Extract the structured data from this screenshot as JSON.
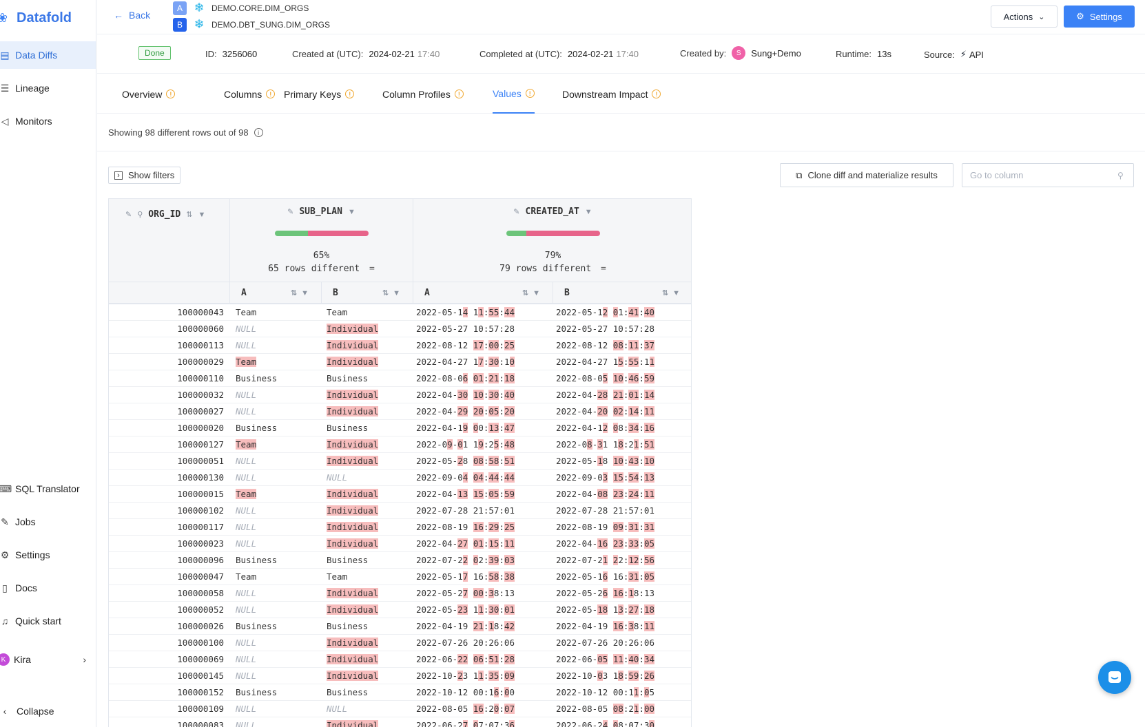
{
  "sidebar": {
    "brand": "Datafold",
    "items": [
      {
        "label": "Data Diffs",
        "icon": "data-diffs-icon",
        "glyph": "▤",
        "active": true
      },
      {
        "label": "Lineage",
        "icon": "lineage-icon",
        "glyph": "☰",
        "active": false
      },
      {
        "label": "Monitors",
        "icon": "monitors-icon",
        "glyph": "◁",
        "active": false
      }
    ],
    "bottom_items": [
      {
        "label": "SQL Translator",
        "icon": "sql-translator-icon",
        "glyph": "⌨"
      },
      {
        "label": "Jobs",
        "icon": "wrench-icon",
        "glyph": "✎"
      },
      {
        "label": "Settings",
        "icon": "sliders-icon",
        "glyph": "⚙"
      },
      {
        "label": "Docs",
        "icon": "book-icon",
        "glyph": "▯"
      },
      {
        "label": "Quick start",
        "icon": "bell-icon",
        "glyph": "♫"
      }
    ],
    "user": {
      "initial": "K",
      "name": "Kira"
    },
    "collapse": "Collapse"
  },
  "topbar": {
    "back": "Back",
    "dataset_a": {
      "badge": "A",
      "name": "DEMO.CORE.DIM_ORGS"
    },
    "dataset_b": {
      "badge": "B",
      "name": "DEMO.DBT_SUNG.DIM_ORGS"
    },
    "actions": "Actions",
    "settings": "Settings"
  },
  "meta": {
    "status": "Done",
    "id_label": "ID:",
    "id": "3256060",
    "created_label": "Created at (UTC):",
    "created_date": "2024-02-21",
    "created_time": "17:40",
    "completed_label": "Completed at (UTC):",
    "completed_date": "2024-02-21",
    "completed_time": "17:40",
    "created_by_label": "Created by:",
    "created_by_initial": "S",
    "created_by": "Sung+Demo",
    "runtime_label": "Runtime:",
    "runtime": "13s",
    "source_label": "Source:",
    "source": "API"
  },
  "tabs": [
    {
      "label": "Overview",
      "active": false
    },
    {
      "label": "Columns",
      "active": false
    },
    {
      "label": "Primary Keys",
      "active": false
    },
    {
      "label": "Column Profiles",
      "active": false
    },
    {
      "label": "Values",
      "active": true
    },
    {
      "label": "Downstream Impact",
      "active": false
    }
  ],
  "summary": "Showing 98 different rows out of 98",
  "toolbar": {
    "show_filters": "Show filters",
    "clone": "Clone diff and materialize results",
    "goto_placeholder": "Go to column"
  },
  "table": {
    "key_column": "ORG_ID",
    "columns": [
      {
        "name": "SUB_PLAN",
        "match_fraction": 0.35,
        "pct": "65%",
        "diff_text": "65 rows different"
      },
      {
        "name": "CREATED_AT",
        "match_fraction": 0.21,
        "pct": "79%",
        "diff_text": "79 rows different"
      }
    ],
    "sub_a": "A",
    "sub_b": "B",
    "rows": [
      {
        "id": "100000043",
        "sa": "Team",
        "sb": "Team",
        "ca": "2022-05-1[4] 1[1]:[55]:[44]",
        "cb": "2022-05-1[2] [0]1:[41]:[40]"
      },
      {
        "id": "100000060",
        "sa": "NULL",
        "sb": "[Individual]",
        "ca": "2022-05-27 10:57:28",
        "cb": "2022-05-27 10:57:28"
      },
      {
        "id": "100000113",
        "sa": "NULL",
        "sb": "[Individual]",
        "ca": "2022-08-12 [17]:[00]:[25]",
        "cb": "2022-08-12 [08]:[11]:[37]"
      },
      {
        "id": "100000029",
        "sa": "[Team]",
        "sb": "[Individual]",
        "ca": "2022-04-27 1[7]:[30]:1[0]",
        "cb": "2022-04-27 1[5]:[55]:1[1]"
      },
      {
        "id": "100000110",
        "sa": "Business",
        "sb": "Business",
        "ca": "2022-08-0[6] [01]:[21]:[18]",
        "cb": "2022-08-0[5] [10]:[46]:[59]"
      },
      {
        "id": "100000032",
        "sa": "NULL",
        "sb": "[Individual]",
        "ca": "2022-04-[30] [10]:[30]:[40]",
        "cb": "2022-04-[28] [21]:[01]:[14]"
      },
      {
        "id": "100000027",
        "sa": "NULL",
        "sb": "[Individual]",
        "ca": "2022-04-[29] [20]:[05]:[20]",
        "cb": "2022-04-[20] [02]:[14]:[11]"
      },
      {
        "id": "100000020",
        "sa": "Business",
        "sb": "Business",
        "ca": "2022-04-1[9] [0]0:[13]:[47]",
        "cb": "2022-04-1[2] [0]8:[34]:[16]"
      },
      {
        "id": "100000127",
        "sa": "[Team]",
        "sb": "[Individual]",
        "ca": "2022-0[9]-[0]1 1[9]:2[5]:[48]",
        "cb": "2022-0[8]-[3]1 1[8]:2[1]:[51]"
      },
      {
        "id": "100000051",
        "sa": "NULL",
        "sb": "[Individual]",
        "ca": "2022-05-[2]8 [08]:[58]:[51]",
        "cb": "2022-05-[1]8 [10]:[43]:[10]"
      },
      {
        "id": "100000130",
        "sa": "NULL",
        "sb": "NULL",
        "ca": "2022-09-0[4] [04]:[44]:[44]",
        "cb": "2022-09-0[3] [15]:[54]:[13]"
      },
      {
        "id": "100000015",
        "sa": "[Team]",
        "sb": "[Individual]",
        "ca": "2022-04-[13] [15]:[05]:[59]",
        "cb": "2022-04-[08] [23]:[24]:[11]"
      },
      {
        "id": "100000102",
        "sa": "NULL",
        "sb": "[Individual]",
        "ca": "2022-07-28 21:57:01",
        "cb": "2022-07-28 21:57:01"
      },
      {
        "id": "100000117",
        "sa": "NULL",
        "sb": "[Individual]",
        "ca": "2022-08-19 [16]:[29]:[25]",
        "cb": "2022-08-19 [09]:[31]:[31]"
      },
      {
        "id": "100000023",
        "sa": "NULL",
        "sb": "[Individual]",
        "ca": "2022-04-[27] [01]:[15]:[11]",
        "cb": "2022-04-[16] [23]:[33]:[05]"
      },
      {
        "id": "100000096",
        "sa": "Business",
        "sb": "Business",
        "ca": "2022-07-2[2] [0]2:[39]:[03]",
        "cb": "2022-07-2[1] [2]2:[12]:[56]"
      },
      {
        "id": "100000047",
        "sa": "Team",
        "sb": "Team",
        "ca": "2022-05-1[7] 16:[58]:[38]",
        "cb": "2022-05-1[6] 16:[31]:[05]"
      },
      {
        "id": "100000058",
        "sa": "NULL",
        "sb": "[Individual]",
        "ca": "2022-05-2[7] [00]:[3]8:13",
        "cb": "2022-05-2[6] [16]:[1]8:13"
      },
      {
        "id": "100000052",
        "sa": "NULL",
        "sb": "[Individual]",
        "ca": "2022-05-[23] 1[1]:[30]:[01]",
        "cb": "2022-05-[18] 1[3]:[27]:[18]"
      },
      {
        "id": "100000026",
        "sa": "Business",
        "sb": "Business",
        "ca": "2022-04-19 [21]:[1]8:[42]",
        "cb": "2022-04-19 [16]:[3]8:[11]"
      },
      {
        "id": "100000100",
        "sa": "NULL",
        "sb": "[Individual]",
        "ca": "2022-07-26 20:26:06",
        "cb": "2022-07-26 20:26:06"
      },
      {
        "id": "100000069",
        "sa": "NULL",
        "sb": "[Individual]",
        "ca": "2022-06-[22] [06]:[51]:[28]",
        "cb": "2022-06-[05] [11]:[40]:[34]"
      },
      {
        "id": "100000145",
        "sa": "NULL",
        "sb": "[Individual]",
        "ca": "2022-10-[2]3 1[1]:[35]:[09]",
        "cb": "2022-10-[0]3 1[8]:[59]:[26]"
      },
      {
        "id": "100000152",
        "sa": "Business",
        "sb": "Business",
        "ca": "2022-10-12 00:1[6]:[0]0",
        "cb": "2022-10-12 00:1[1]:[0]5"
      },
      {
        "id": "100000109",
        "sa": "NULL",
        "sb": "NULL",
        "ca": "2022-08-05 [16]:2[0]:[07]",
        "cb": "2022-08-05 [08]:2[1]:[00]"
      },
      {
        "id": "100000083",
        "sa": "NULL",
        "sb": "[Individual]",
        "ca": "2022-06-2[7] [0]7:07:3[6]",
        "cb": "2022-06-2[4] [0]8:07:3[0]"
      }
    ]
  }
}
